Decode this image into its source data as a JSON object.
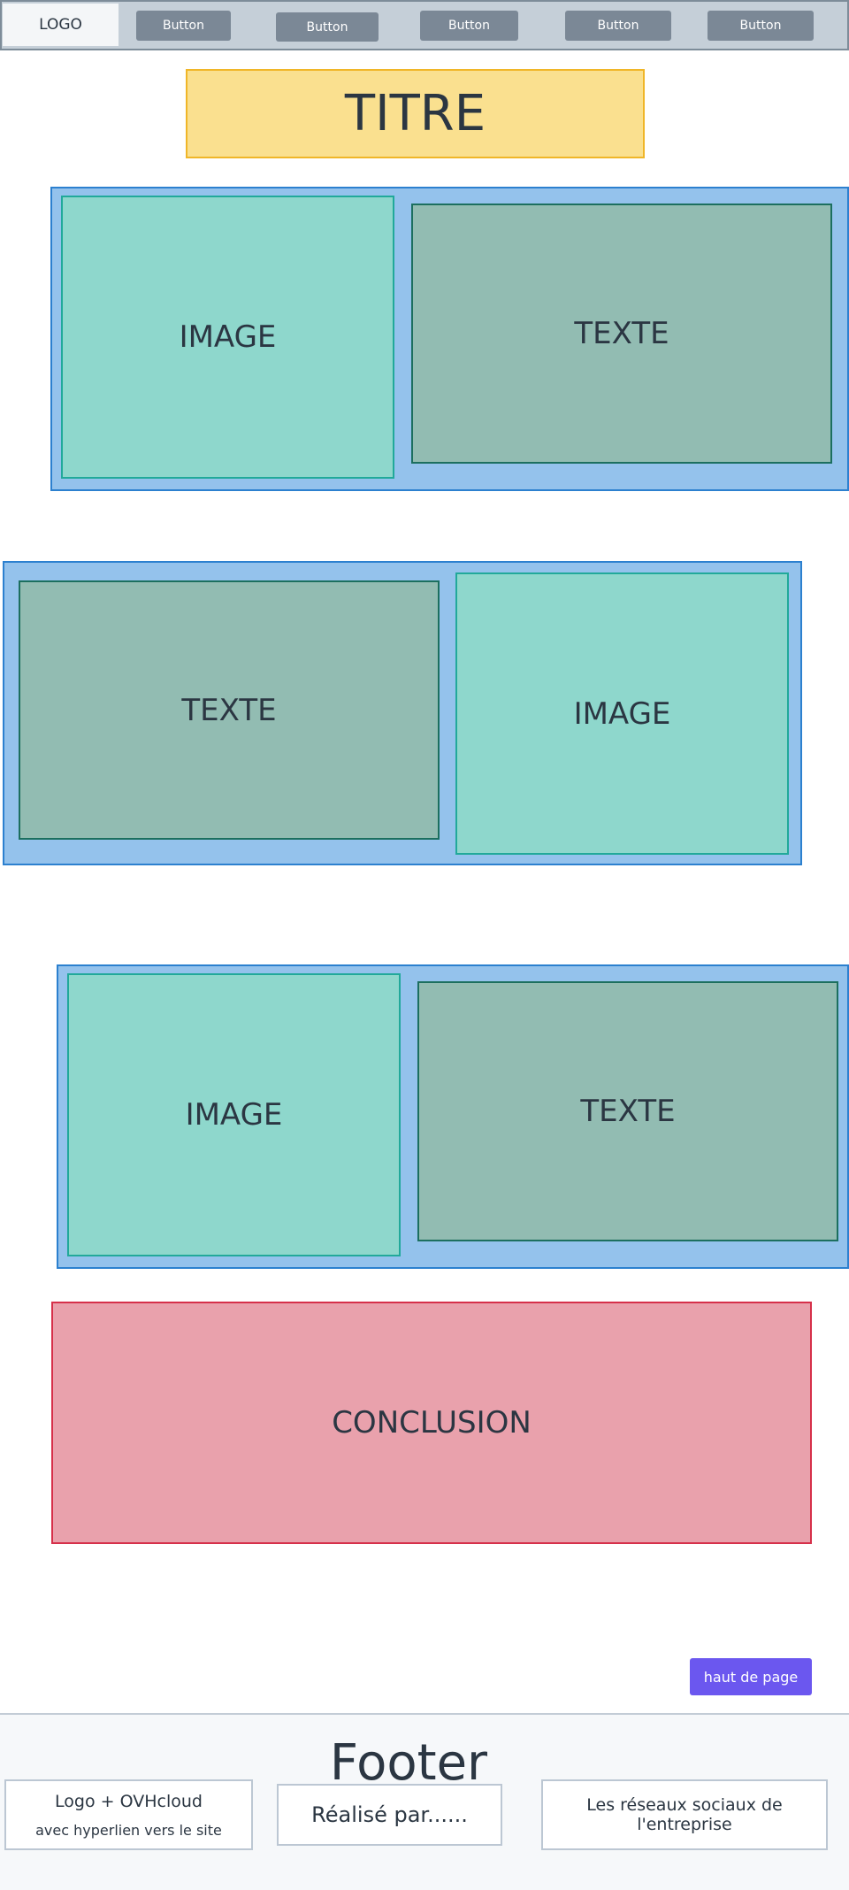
{
  "nav": {
    "logo": "LOGO",
    "buttons": [
      "Button",
      "Button",
      "Button",
      "Button",
      "Button"
    ]
  },
  "title": "TITRE",
  "sections": [
    {
      "image_label": "IMAGE",
      "text_label": "TEXTE"
    },
    {
      "text_label": "TEXTE",
      "image_label": "IMAGE"
    },
    {
      "image_label": "IMAGE",
      "text_label": "TEXTE"
    }
  ],
  "conclusion": "CONCLUSION",
  "back_to_top": "haut de page",
  "footer": {
    "title": "Footer",
    "box1_line1": "Logo + OVHcloud",
    "box1_line2": "avec hyperlien vers le site",
    "box2": "Réalisé par......",
    "box3": "Les réseaux sociaux de l'entreprise"
  },
  "colors": {
    "nav_bg": "#c5cfd8",
    "title_bg": "#fae08f",
    "section_bg": "#94c2ec",
    "image_bg": "#8ed7cc",
    "text_bg": "#92bcb2",
    "conclusion_bg": "#e9a1ac",
    "button_accent": "#6b57ef"
  }
}
